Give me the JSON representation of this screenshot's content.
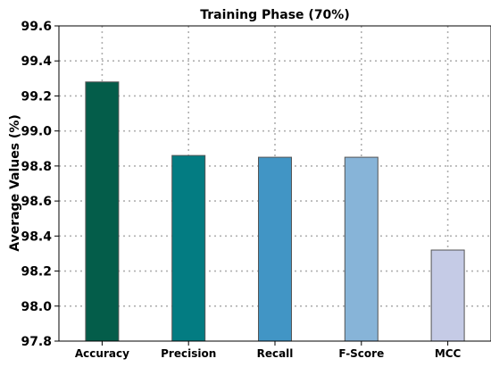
{
  "chart_data": {
    "type": "bar",
    "title": "Training Phase (70%)",
    "xlabel": "",
    "ylabel": "Average Values (%)",
    "categories": [
      "Accuracy",
      "Precision",
      "Recall",
      "F-Score",
      "MCC"
    ],
    "values": [
      99.28,
      98.86,
      98.85,
      98.85,
      98.32
    ],
    "ylim": [
      97.8,
      99.6
    ],
    "yticks": [
      "97.8",
      "98.0",
      "98.2",
      "98.4",
      "98.6",
      "98.8",
      "99.0",
      "99.2",
      "99.4",
      "99.6"
    ],
    "colors": [
      "#045d4a",
      "#037c82",
      "#4195c5",
      "#87b4d8",
      "#c5cbe6"
    ],
    "grid": true
  }
}
